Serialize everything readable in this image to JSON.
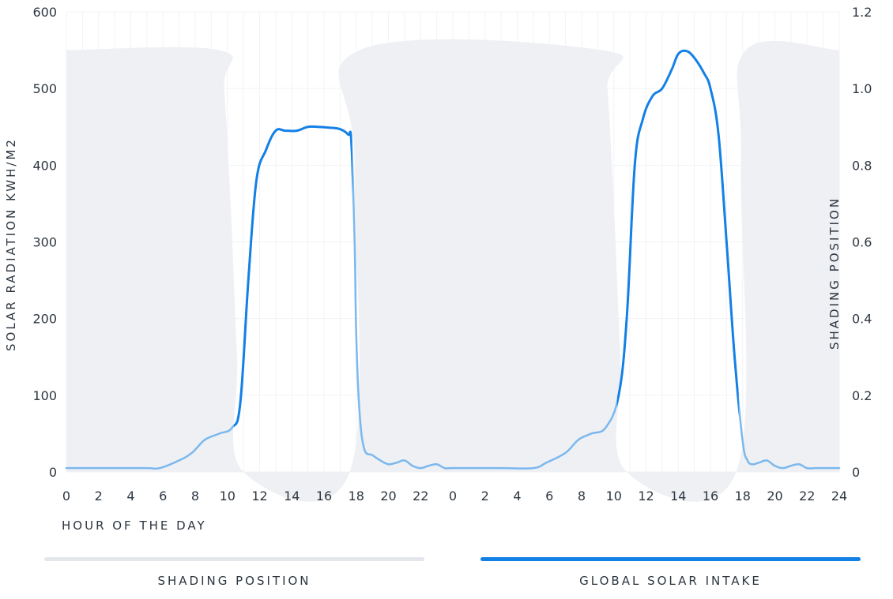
{
  "chart_data": {
    "type": "area",
    "xlabel": "HOUR OF THE DAY",
    "ylabel_left": "SOLAR RADIATION KWH/M2",
    "ylabel_right": "SHADING POSITION",
    "x_hours_day": [
      0,
      2,
      4,
      6,
      8,
      10,
      12,
      14,
      16,
      18,
      20,
      22
    ],
    "x_tick_labels": [
      "0",
      "2",
      "4",
      "6",
      "8",
      "10",
      "12",
      "14",
      "16",
      "18",
      "20",
      "22",
      "0",
      "2",
      "4",
      "6",
      "8",
      "10",
      "12",
      "14",
      "16",
      "18",
      "20",
      "22",
      "24"
    ],
    "y_left": {
      "min": 0,
      "max": 600,
      "ticks": [
        "0",
        "100",
        "200",
        "300",
        "400",
        "500",
        "600"
      ]
    },
    "y_right": {
      "min": 0,
      "max": 1.2,
      "ticks": [
        "0",
        "0.2",
        "0.4",
        "0.6",
        "0.8",
        "1.0",
        "1.2"
      ]
    },
    "grid": true,
    "series": [
      {
        "name": "SHADING POSITION",
        "axis": "right",
        "color": "#eef0f4",
        "type": "area",
        "x": [
          0,
          9.5,
          9.8,
          10.2,
          10.6,
          11.0,
          17.6,
          17.9,
          18.2,
          33.3,
          33.6,
          34.0,
          34.4,
          34.8,
          41.6,
          41.9,
          42.2,
          48
        ],
        "y": [
          1.1,
          1.1,
          1.0,
          0.7,
          0.3,
          0,
          0,
          0.8,
          1.1,
          1.1,
          1.0,
          0.7,
          0.3,
          0,
          0,
          0.8,
          1.1,
          1.1
        ]
      },
      {
        "name": "GLOBAL SOLAR INTAKE",
        "axis": "left",
        "color": "#1380e6",
        "light_color": "#7bb8ee",
        "type": "line",
        "x": [
          0,
          3,
          5,
          5.8,
          7,
          7.8,
          8.6,
          9.5,
          10.3,
          10.8,
          11.3,
          11.8,
          12.4,
          13.0,
          13.6,
          14.3,
          15.0,
          15.6,
          16.3,
          17.0,
          17.5,
          17.7,
          17.9,
          18.0,
          18.2,
          18.5,
          19.0,
          19.5,
          20.0,
          20.5,
          21.0,
          21.5,
          22.0,
          22.5,
          23.0,
          23.5,
          24.0,
          27,
          29,
          29.8,
          31,
          31.8,
          32.6,
          33.5,
          34.3,
          34.8,
          35.3,
          35.8,
          36.4,
          37.0,
          37.6,
          38.0,
          38.5,
          39.0,
          39.6,
          40.0,
          40.5,
          41.0,
          41.5,
          42.0,
          42.3,
          42.6,
          43.0,
          43.5,
          44.0,
          44.5,
          45.0,
          45.5,
          46.0,
          46.5,
          47.0,
          47.5,
          48.0
        ],
        "y": [
          5,
          5,
          5,
          5,
          15,
          25,
          42,
          50,
          58,
          90,
          250,
          380,
          420,
          445,
          445,
          445,
          450,
          450,
          449,
          447,
          440,
          430,
          300,
          180,
          80,
          30,
          22,
          15,
          10,
          12,
          15,
          8,
          5,
          8,
          10,
          5,
          5,
          5,
          5,
          12,
          25,
          42,
          50,
          58,
          100,
          200,
          400,
          460,
          490,
          500,
          525,
          545,
          549,
          540,
          520,
          500,
          440,
          300,
          150,
          40,
          15,
          10,
          12,
          15,
          8,
          5,
          8,
          10,
          5,
          5,
          5,
          5,
          5
        ]
      }
    ]
  }
}
